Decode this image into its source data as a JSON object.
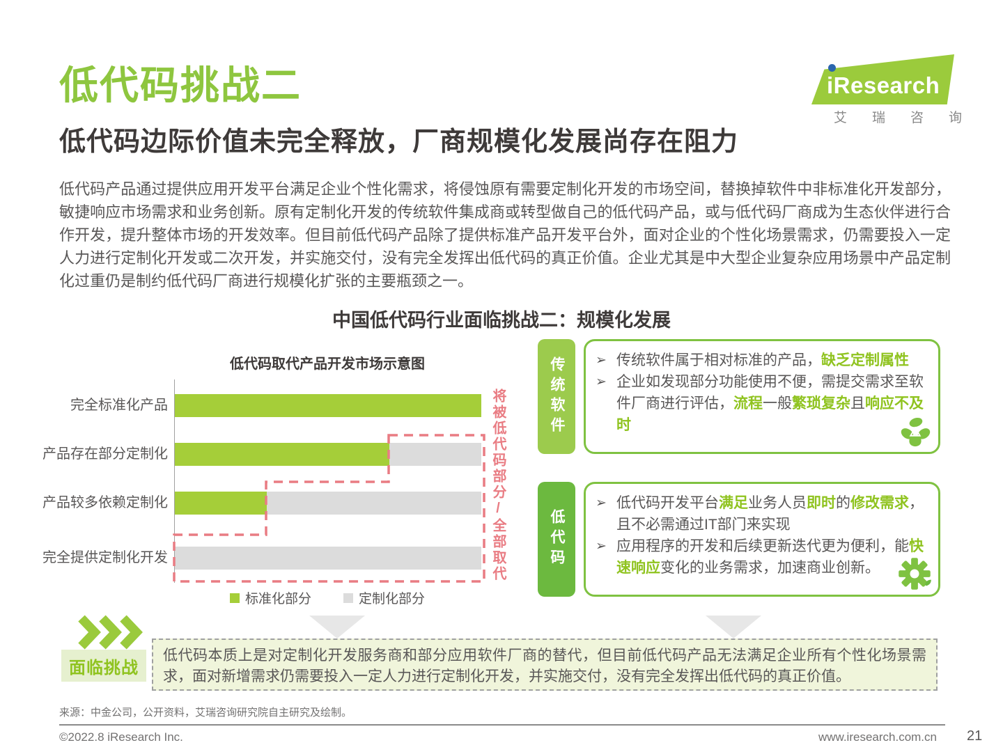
{
  "header": {
    "title": "低代码挑战二",
    "subtitle": "低代码边际价值未完全释放，厂商规模化发展尚存在阻力",
    "logo": {
      "brand": "iResearch",
      "brand_cn": "艾瑞咨询"
    }
  },
  "intro_paragraph": "低代码产品通过提供应用开发平台满足企业个性化需求，将侵蚀原有需要定制化开发的市场空间，替换掉软件中非标准化开发部分，敏捷响应市场需求和业务创新。原有定制化开发的传统软件集成商或转型做自己的低代码产品，或与低代码厂商成为生态伙伴进行合作开发，提升整体市场的开发效率。但目前低代码产品除了提供标准产品开发平台外，面对企业的个性化场景需求，仍需要投入一定人力进行定制化开发或二次开发，并实施交付，没有完全发挥出低代码的真正价值。企业尤其是中大型企业复杂应用场景中产品定制化过重仍是制约低代码厂商进行规模化扩张的主要瓶颈之一。",
  "section_heading": "中国低代码行业面临挑战二：规模化发展",
  "chart_data": {
    "type": "bar",
    "orientation": "horizontal",
    "title": "低代码取代产品开发市场示意图",
    "categories": [
      "完全标准化产品",
      "产品存在部分定制化",
      "产品较多依赖定制化",
      "完全提供定制化开发"
    ],
    "series": [
      {
        "name": "标准化部分",
        "color": "#A5CE39",
        "values": [
          100,
          70,
          30,
          0
        ]
      },
      {
        "name": "定制化部分",
        "color": "#DCDCDC",
        "values": [
          0,
          30,
          70,
          100
        ]
      }
    ],
    "xlim": [
      0,
      100
    ],
    "legend_position": "bottom",
    "annotation": "将被低代码部分/全部取代",
    "annotation_color": "#E97C83"
  },
  "panels": [
    {
      "tab": "传统软件",
      "tab_color": "#9CCB4D",
      "icon": "plant-person-icon",
      "bullets": [
        [
          {
            "t": "传统软件属于相对标准的产品，"
          },
          {
            "t": "缺乏定制属性",
            "hl": true
          }
        ],
        [
          {
            "t": "企业如发现部分功能使用不便，需提交需求至软件厂商进行评估，"
          },
          {
            "t": "流程",
            "hl": true
          },
          {
            "t": "一般"
          },
          {
            "t": "繁琐复杂",
            "hl": true
          },
          {
            "t": "且"
          },
          {
            "t": "响应不及时",
            "hl": true
          }
        ]
      ]
    },
    {
      "tab": "低代码",
      "tab_color": "#6CB93F",
      "icon": "gear-icon",
      "bullets": [
        [
          {
            "t": "低代码开发平台"
          },
          {
            "t": "满足",
            "hl": true
          },
          {
            "t": "业务人员"
          },
          {
            "t": "即时",
            "hl": true
          },
          {
            "t": "的"
          },
          {
            "t": "修改需求",
            "hl": true
          },
          {
            "t": "，且不必需通过IT部门来实现"
          }
        ],
        [
          {
            "t": "应用程序的开发和后续更新迭代更为便利，能"
          },
          {
            "t": "快速响应",
            "hl": true
          },
          {
            "t": "变化的业务需求，加速商业创新。"
          }
        ]
      ]
    }
  ],
  "icons": {
    "bullet_arrow": "➢"
  },
  "challenge": {
    "label": "面临挑战",
    "summary": "低代码本质上是对定制化开发服务商和部分应用软件厂商的替代，但目前低代码产品无法满足企业所有个性化场景需求，面对新增需求仍需要投入一定人力进行定制化开发，并实施交付，没有完全发挥出低代码的真正价值。"
  },
  "footer": {
    "source": "来源：中金公司，公开资料，艾瑞咨询研究院自主研究及绘制。",
    "copyright": "©2022.8 iResearch Inc.",
    "website": "www.iresearch.com.cn",
    "page_number": "21"
  },
  "colors": {
    "brand_green": "#8FC31F",
    "bar_green": "#A5CE39",
    "bar_grey": "#DCDCDC",
    "dashed_red": "#E97C83",
    "text_dark": "#3E3A39",
    "text_body": "#595757"
  }
}
